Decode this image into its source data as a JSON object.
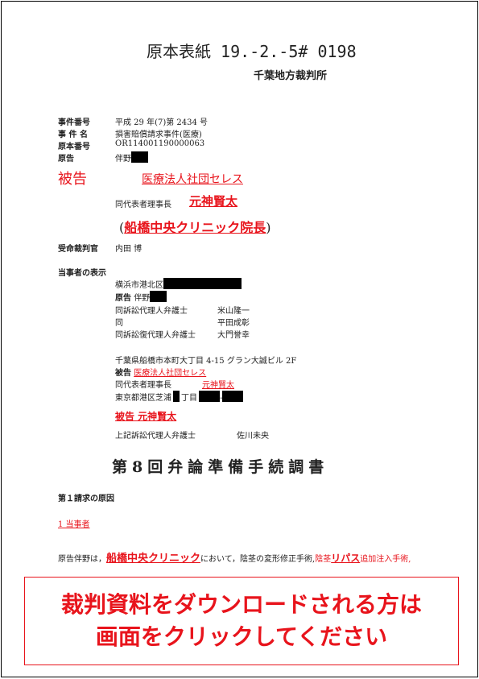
{
  "header": {
    "title": "原本表紙 19.-2.-5# 0198",
    "court": "千葉地方裁判所"
  },
  "case_info": {
    "case_number_label": "事件番号",
    "case_number": "平成 29 年(7)第 2434 号",
    "case_name_label": "事 件 名",
    "case_name": "損害賠償請求事件(医療)",
    "original_number_label": "原本番号",
    "original_number": "OR114001190000063",
    "plaintiff_label": "原告",
    "plaintiff": "伴野",
    "defendant_label": "被告",
    "defendant": "医療法人社団セレス",
    "rep_label": "同代表者理事長",
    "rep_name": "元神賢太",
    "clinic": "船橋中央クリニック院長",
    "judge_label": "受命裁判官",
    "judge": "内田 博"
  },
  "parties": {
    "heading": "当事者の表示",
    "plaintiff_address": "横浜市港北区",
    "plaintiff_label": "原告",
    "plaintiff_name": "伴野",
    "lawyer1_label": "同訴訟代理人弁護士",
    "lawyer1": "米山隆一",
    "same_label": "同",
    "lawyer2": "平田成彰",
    "lawyer3_label": "同訴訟復代理人弁護士",
    "lawyer3": "大門誉幸",
    "defendant_address": "千葉県船橋市本町大丁目 4-15 グラン大誠ビル 2F",
    "defendant_label": "被告",
    "defendant_name": "医療法人社団セレス",
    "rep_label": "同代表者理事長",
    "rep_name": "元神賢太",
    "rep_address_a": "東京都港区芝浦",
    "rep_address_b": "丁目",
    "defendant2": "被告 元神賢太",
    "def_lawyer_label": "上記訴訟代理人弁護士",
    "def_lawyer": "佐川未央"
  },
  "document": {
    "title": "第8回弁論準備手続調書",
    "section": "第１請求の原因",
    "subsection": "1 当事者",
    "body_a": "原告伴野は，",
    "body_clinic": "船橋中央クリニック",
    "body_b": "において，陰茎の変形修正手術,",
    "body_c": "陰茎",
    "body_ripas": "リパス",
    "body_d": "追加注入手術,"
  },
  "banner": {
    "line1": "裁判資料をダウンロードされる方は",
    "line2": "画面をクリックしてください"
  },
  "colors": {
    "accent": "#e8141c"
  }
}
